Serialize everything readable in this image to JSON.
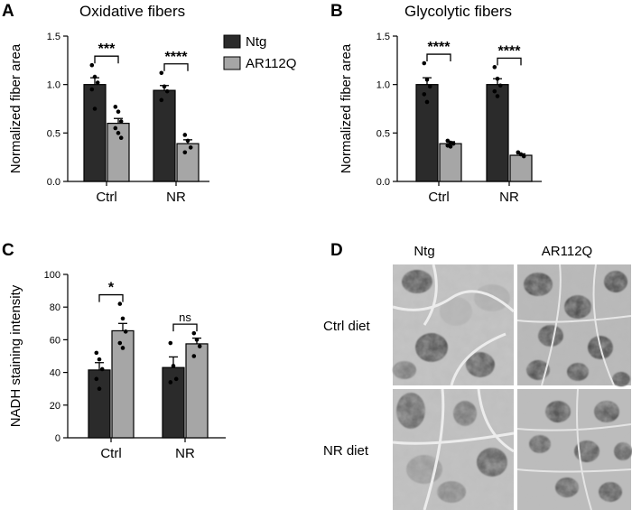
{
  "colors": {
    "ntg": "#2b2b2b",
    "ar112q": "#a6a6a6",
    "axis": "#000000"
  },
  "legend": {
    "position": "top-right of panel A",
    "entries": [
      "Ntg",
      "AR112Q"
    ]
  },
  "panels": {
    "A": {
      "letter": "A",
      "title": "Oxidative fibers"
    },
    "B": {
      "letter": "B",
      "title": "Glycolytic fibers"
    },
    "C": {
      "letter": "C",
      "title": ""
    },
    "D": {
      "letter": "D",
      "columns": [
        "Ntg",
        "AR112Q"
      ],
      "rows": [
        "Ctrl diet",
        "NR diet"
      ]
    }
  },
  "chart_data": [
    {
      "id": "A",
      "type": "bar",
      "title": "Oxidative fibers",
      "ylabel": "Normalized fiber area",
      "xlabel": "",
      "categories": [
        "Ctrl",
        "NR"
      ],
      "ylim": [
        0,
        1.5
      ],
      "yticks": [
        0.0,
        0.5,
        1.0,
        1.5
      ],
      "tick_labels": [
        "0.0",
        "0.5",
        "1.0",
        "1.5"
      ],
      "grid": false,
      "series": [
        {
          "name": "Ntg",
          "values": [
            1.0,
            0.94
          ],
          "sem": [
            0.07,
            0.05
          ],
          "points": [
            [
              1.2,
              1.08,
              1.02,
              0.95,
              0.75
            ],
            [
              1.12,
              0.98,
              0.93,
              0.84
            ]
          ]
        },
        {
          "name": "AR112Q",
          "values": [
            0.6,
            0.39
          ],
          "sem": [
            0.05,
            0.04
          ],
          "points": [
            [
              0.77,
              0.72,
              0.62,
              0.55,
              0.5,
              0.45
            ],
            [
              0.48,
              0.42,
              0.35,
              0.3
            ]
          ]
        }
      ],
      "significance": [
        "***",
        "****"
      ]
    },
    {
      "id": "B",
      "type": "bar",
      "title": "Glycolytic fibers",
      "ylabel": "Normalized fiber area",
      "xlabel": "",
      "categories": [
        "Ctrl",
        "NR"
      ],
      "ylim": [
        0,
        1.5
      ],
      "yticks": [
        0.0,
        0.5,
        1.0,
        1.5
      ],
      "tick_labels": [
        "0.0",
        "0.5",
        "1.0",
        "1.5"
      ],
      "grid": false,
      "series": [
        {
          "name": "Ntg",
          "values": [
            1.0,
            1.0
          ],
          "sem": [
            0.07,
            0.06
          ],
          "points": [
            [
              1.22,
              1.05,
              0.98,
              0.9,
              0.82
            ],
            [
              1.18,
              1.06,
              0.99,
              0.93,
              0.88
            ]
          ]
        },
        {
          "name": "AR112Q",
          "values": [
            0.39,
            0.27
          ],
          "sem": [
            0.02,
            0.015
          ],
          "points": [
            [
              0.42,
              0.4,
              0.39,
              0.37,
              0.36
            ],
            [
              0.3,
              0.28,
              0.26
            ]
          ]
        }
      ],
      "significance": [
        "****",
        "****"
      ]
    },
    {
      "id": "C",
      "type": "bar",
      "title": "",
      "ylabel": "NADH staining intensity",
      "xlabel": "",
      "categories": [
        "Ctrl",
        "NR"
      ],
      "ylim": [
        0,
        100
      ],
      "yticks": [
        0,
        20,
        40,
        60,
        80,
        100
      ],
      "tick_labels": [
        "0",
        "20",
        "40",
        "60",
        "80",
        "100"
      ],
      "grid": false,
      "series": [
        {
          "name": "Ntg",
          "values": [
            41.5,
            43
          ],
          "sem": [
            4.5,
            6.5
          ],
          "points": [
            [
              52,
              48,
              42,
              36,
              30
            ],
            [
              58,
              44,
              36,
              34
            ]
          ]
        },
        {
          "name": "AR112Q",
          "values": [
            65.5,
            57.5
          ],
          "sem": [
            4.5,
            3.5
          ],
          "points": [
            [
              82,
              73,
              65,
              58,
              55
            ],
            [
              64,
              60,
              56,
              50
            ]
          ]
        }
      ],
      "significance": [
        "*",
        "ns"
      ]
    }
  ]
}
